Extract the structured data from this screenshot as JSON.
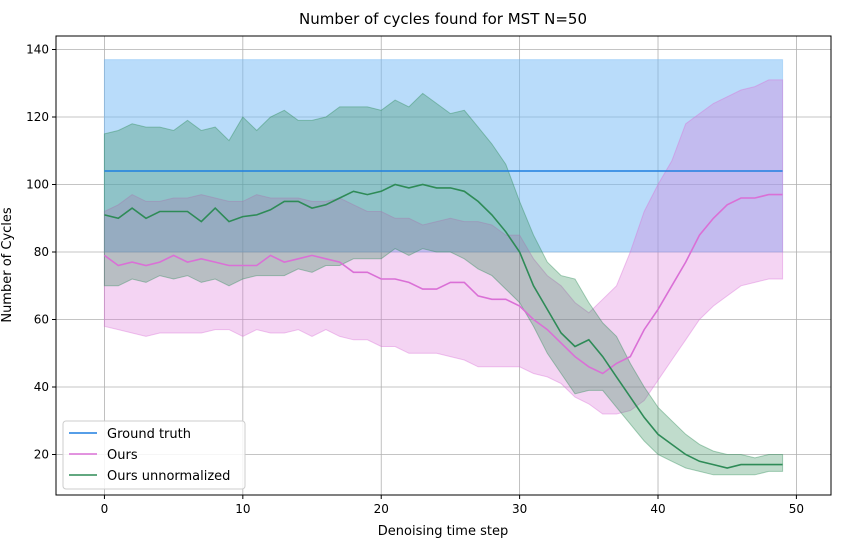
{
  "chart_data": {
    "type": "line",
    "title": "Number of cycles found for MST N=50",
    "xlabel": "Denoising time step",
    "ylabel": "Number of Cycles",
    "xlim": [
      -3.5,
      52.5
    ],
    "ylim": [
      8,
      144
    ],
    "xticks": [
      0,
      10,
      20,
      30,
      40,
      50
    ],
    "yticks": [
      20,
      40,
      60,
      80,
      100,
      120,
      140
    ],
    "grid": true,
    "legend_position": "lower-left",
    "series": [
      {
        "name": "Ground truth",
        "color": "#1f7fe0",
        "band_color": "#73b9f5",
        "band_opacity": 0.5,
        "x": [
          0,
          49
        ],
        "values": [
          104,
          104
        ],
        "lower": [
          80,
          80
        ],
        "upper": [
          137,
          137
        ]
      },
      {
        "name": "Ours",
        "color": "#da70d6",
        "band_color": "#da70d6",
        "band_opacity": 0.3,
        "x": [
          0,
          1,
          2,
          3,
          4,
          5,
          6,
          7,
          8,
          9,
          10,
          11,
          12,
          13,
          14,
          15,
          16,
          17,
          18,
          19,
          20,
          21,
          22,
          23,
          24,
          25,
          26,
          27,
          28,
          29,
          30,
          31,
          32,
          33,
          34,
          35,
          36,
          37,
          38,
          39,
          40,
          41,
          42,
          43,
          44,
          45,
          46,
          47,
          48,
          49
        ],
        "values": [
          79,
          76,
          77,
          76,
          77,
          79,
          77,
          78,
          77,
          76,
          76,
          76,
          79,
          77,
          78,
          79,
          78,
          77,
          74,
          74,
          72,
          72,
          71,
          69,
          69,
          71,
          71,
          67,
          66,
          66,
          64,
          60,
          57,
          53,
          49,
          46,
          44,
          47,
          49,
          57,
          63,
          70,
          77,
          85,
          90,
          94,
          96,
          96,
          97,
          97
        ],
        "lower": [
          58,
          57,
          56,
          55,
          56,
          56,
          56,
          56,
          57,
          57,
          55,
          57,
          56,
          56,
          57,
          55,
          57,
          55,
          54,
          54,
          52,
          52,
          50,
          50,
          50,
          49,
          48,
          46,
          46,
          46,
          46,
          44,
          43,
          41,
          37,
          35,
          32,
          32,
          33,
          36,
          42,
          48,
          54,
          60,
          64,
          67,
          70,
          71,
          72,
          72
        ],
        "upper": [
          92,
          94,
          97,
          95,
          95,
          96,
          96,
          97,
          96,
          95,
          95,
          97,
          96,
          96,
          96,
          95,
          95,
          96,
          94,
          92,
          92,
          90,
          90,
          88,
          89,
          90,
          89,
          89,
          88,
          85,
          85,
          78,
          73,
          70,
          65,
          62,
          66,
          70,
          80,
          92,
          100,
          107,
          118,
          121,
          124,
          126,
          128,
          129,
          131,
          131
        ]
      },
      {
        "name": "Ours unnormalized",
        "color": "#2e8b57",
        "band_color": "#2e8b57",
        "band_opacity": 0.3,
        "x": [
          0,
          1,
          2,
          3,
          4,
          5,
          6,
          7,
          8,
          9,
          10,
          11,
          12,
          13,
          14,
          15,
          16,
          17,
          18,
          19,
          20,
          21,
          22,
          23,
          24,
          25,
          26,
          27,
          28,
          29,
          30,
          31,
          32,
          33,
          34,
          35,
          36,
          37,
          38,
          39,
          40,
          41,
          42,
          43,
          44,
          45,
          46,
          47,
          48,
          49
        ],
        "values": [
          91,
          90,
          93,
          90,
          92,
          92,
          92,
          89,
          93,
          89,
          90.5,
          91,
          92.5,
          95,
          95,
          93,
          94,
          96,
          98,
          97,
          98,
          100,
          99,
          100,
          99,
          99,
          98,
          95,
          91,
          86,
          80,
          70,
          63,
          56,
          52,
          54,
          49,
          43,
          37,
          31,
          26,
          23,
          20,
          18,
          17,
          16,
          17,
          17,
          17,
          17
        ],
        "lower": [
          70,
          70,
          72,
          71,
          73,
          72,
          73,
          71,
          72,
          70,
          72,
          73,
          73,
          73,
          75,
          74,
          76,
          76,
          78,
          78,
          78,
          81,
          79,
          81,
          80,
          80,
          78,
          75,
          73,
          69,
          65,
          58,
          50,
          44,
          38,
          39,
          39,
          34,
          29,
          24,
          20,
          18,
          16,
          15,
          14,
          14,
          14,
          14,
          15,
          15
        ],
        "upper": [
          115,
          116,
          118,
          117,
          117,
          116,
          119,
          116,
          117,
          113,
          120,
          116,
          120,
          122,
          119,
          119,
          120,
          123,
          123,
          123,
          122,
          125,
          123,
          127,
          124,
          121,
          122,
          117,
          112,
          106,
          95,
          85,
          77,
          73,
          72,
          65,
          59,
          55,
          47,
          40,
          34,
          30,
          26,
          23,
          21,
          20,
          20,
          19,
          20,
          20
        ]
      }
    ]
  }
}
